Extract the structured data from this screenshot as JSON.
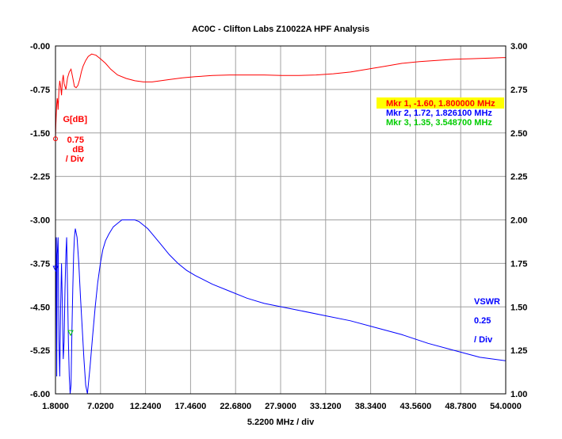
{
  "chart_data": {
    "type": "line",
    "title": "AC0C - Clifton Labs Z10022A HPF Analysis",
    "xlabel": "5.2200 MHz / div",
    "xlim": [
      1.8,
      54.0
    ],
    "x_ticks": [
      "1.8000",
      "7.0200",
      "12.2400",
      "17.4600",
      "22.6800",
      "27.9000",
      "33.1200",
      "38.3400",
      "43.5600",
      "48.7800",
      "54.0000"
    ],
    "y_left": {
      "lim": [
        -6.0,
        0.0
      ],
      "ticks": [
        "-0.00",
        "-0.75",
        "-1.50",
        "-2.25",
        "-3.00",
        "-3.75",
        "-4.50",
        "-5.25",
        "-6.00"
      ],
      "label_lines": [
        "G[dB]",
        "0.75",
        "dB",
        "/ Div"
      ],
      "color": "#ff0000"
    },
    "y_right": {
      "lim": [
        1.0,
        3.0
      ],
      "ticks": [
        "3.00",
        "2.75",
        "2.50",
        "2.25",
        "2.00",
        "1.75",
        "1.50",
        "1.25",
        "1.00"
      ],
      "label_lines": [
        "VSWR",
        "0.25",
        "/ Div"
      ],
      "color": "#0000ff"
    },
    "grid": true,
    "series": [
      {
        "name": "G[dB]",
        "axis": "left",
        "color": "#ff0000",
        "x": [
          1.8,
          1.85,
          1.9,
          1.95,
          2.0,
          2.05,
          2.1,
          2.2,
          2.3,
          2.4,
          2.5,
          2.6,
          2.7,
          2.8,
          3.0,
          3.2,
          3.4,
          3.6,
          3.8,
          4.0,
          4.2,
          4.4,
          4.6,
          4.8,
          5.0,
          5.3,
          5.6,
          6.0,
          6.5,
          7.0,
          7.6,
          8.2,
          9.0,
          10.0,
          11.0,
          12.0,
          13.0,
          14.0,
          15.0,
          16.5,
          18.0,
          20.0,
          22.0,
          24.0,
          26.0,
          28.0,
          30.0,
          32.0,
          34.0,
          36.0,
          38.0,
          40.0,
          42.0,
          44.0,
          46.0,
          48.0,
          50.0,
          52.0,
          54.0
        ],
        "y": [
          -1.6,
          -1.35,
          -1.15,
          -1.0,
          -0.9,
          -0.95,
          -1.1,
          -0.75,
          -0.6,
          -0.7,
          -0.85,
          -0.6,
          -0.5,
          -0.65,
          -0.75,
          -0.55,
          -0.45,
          -0.4,
          -0.55,
          -0.7,
          -0.72,
          -0.68,
          -0.58,
          -0.45,
          -0.35,
          -0.25,
          -0.18,
          -0.14,
          -0.16,
          -0.22,
          -0.3,
          -0.4,
          -0.5,
          -0.56,
          -0.6,
          -0.62,
          -0.62,
          -0.6,
          -0.58,
          -0.55,
          -0.53,
          -0.51,
          -0.5,
          -0.5,
          -0.5,
          -0.51,
          -0.51,
          -0.5,
          -0.48,
          -0.45,
          -0.4,
          -0.35,
          -0.3,
          -0.27,
          -0.25,
          -0.23,
          -0.22,
          -0.21,
          -0.2
        ]
      },
      {
        "name": "VSWR",
        "axis": "right",
        "color": "#0000ff",
        "x": [
          1.8,
          1.85,
          1.9,
          1.95,
          2.0,
          2.1,
          2.2,
          2.3,
          2.4,
          2.5,
          2.6,
          2.7,
          2.8,
          2.9,
          3.0,
          3.1,
          3.2,
          3.3,
          3.4,
          3.5,
          3.6,
          3.7,
          3.8,
          3.9,
          4.0,
          4.1,
          4.3,
          4.5,
          4.7,
          4.9,
          5.1,
          5.3,
          5.5,
          5.8,
          6.1,
          6.4,
          6.7,
          7.0,
          7.3,
          7.6,
          8.0,
          8.5,
          9.0,
          9.5,
          10.0,
          10.5,
          11.0,
          11.5,
          12.0,
          12.5,
          13.0,
          13.5,
          14.0,
          15.0,
          16.0,
          17.0,
          18.0,
          20.0,
          22.0,
          24.0,
          26.0,
          28.0,
          30.0,
          33.0,
          36.0,
          39.0,
          42.0,
          45.0,
          48.0,
          51.0,
          54.0
        ],
        "y": [
          1.15,
          1.8,
          1.9,
          1.1,
          1.8,
          1.9,
          1.3,
          1.1,
          1.5,
          1.75,
          1.5,
          1.2,
          1.3,
          1.6,
          1.8,
          1.9,
          1.6,
          1.3,
          1.1,
          1.0,
          1.05,
          1.35,
          1.6,
          1.8,
          1.9,
          1.95,
          1.9,
          1.75,
          1.55,
          1.38,
          1.2,
          1.05,
          1.0,
          1.15,
          1.33,
          1.5,
          1.64,
          1.75,
          1.83,
          1.88,
          1.92,
          1.96,
          1.98,
          2.0,
          2.0,
          2.0,
          2.0,
          1.99,
          1.97,
          1.95,
          1.92,
          1.89,
          1.86,
          1.8,
          1.75,
          1.71,
          1.68,
          1.63,
          1.59,
          1.55,
          1.52,
          1.5,
          1.48,
          1.45,
          1.42,
          1.38,
          1.34,
          1.29,
          1.25,
          1.21,
          1.19
        ]
      }
    ],
    "markers": [
      {
        "label": "Mkr 1, -1.60, 1.800000 MHz",
        "color": "#ff0000",
        "highlight": "#ffff00",
        "x": 1.8,
        "y": -1.6,
        "axis": "left"
      },
      {
        "label": "Mkr 2, 1.72, 1.826100 MHz",
        "color": "#0000ff",
        "x": 1.8261,
        "y": 1.72,
        "axis": "right"
      },
      {
        "label": "Mkr 3, 1.35, 3.548700 MHz",
        "color": "#00cc00",
        "x": 3.5487,
        "y": 1.35,
        "axis": "right"
      }
    ]
  }
}
